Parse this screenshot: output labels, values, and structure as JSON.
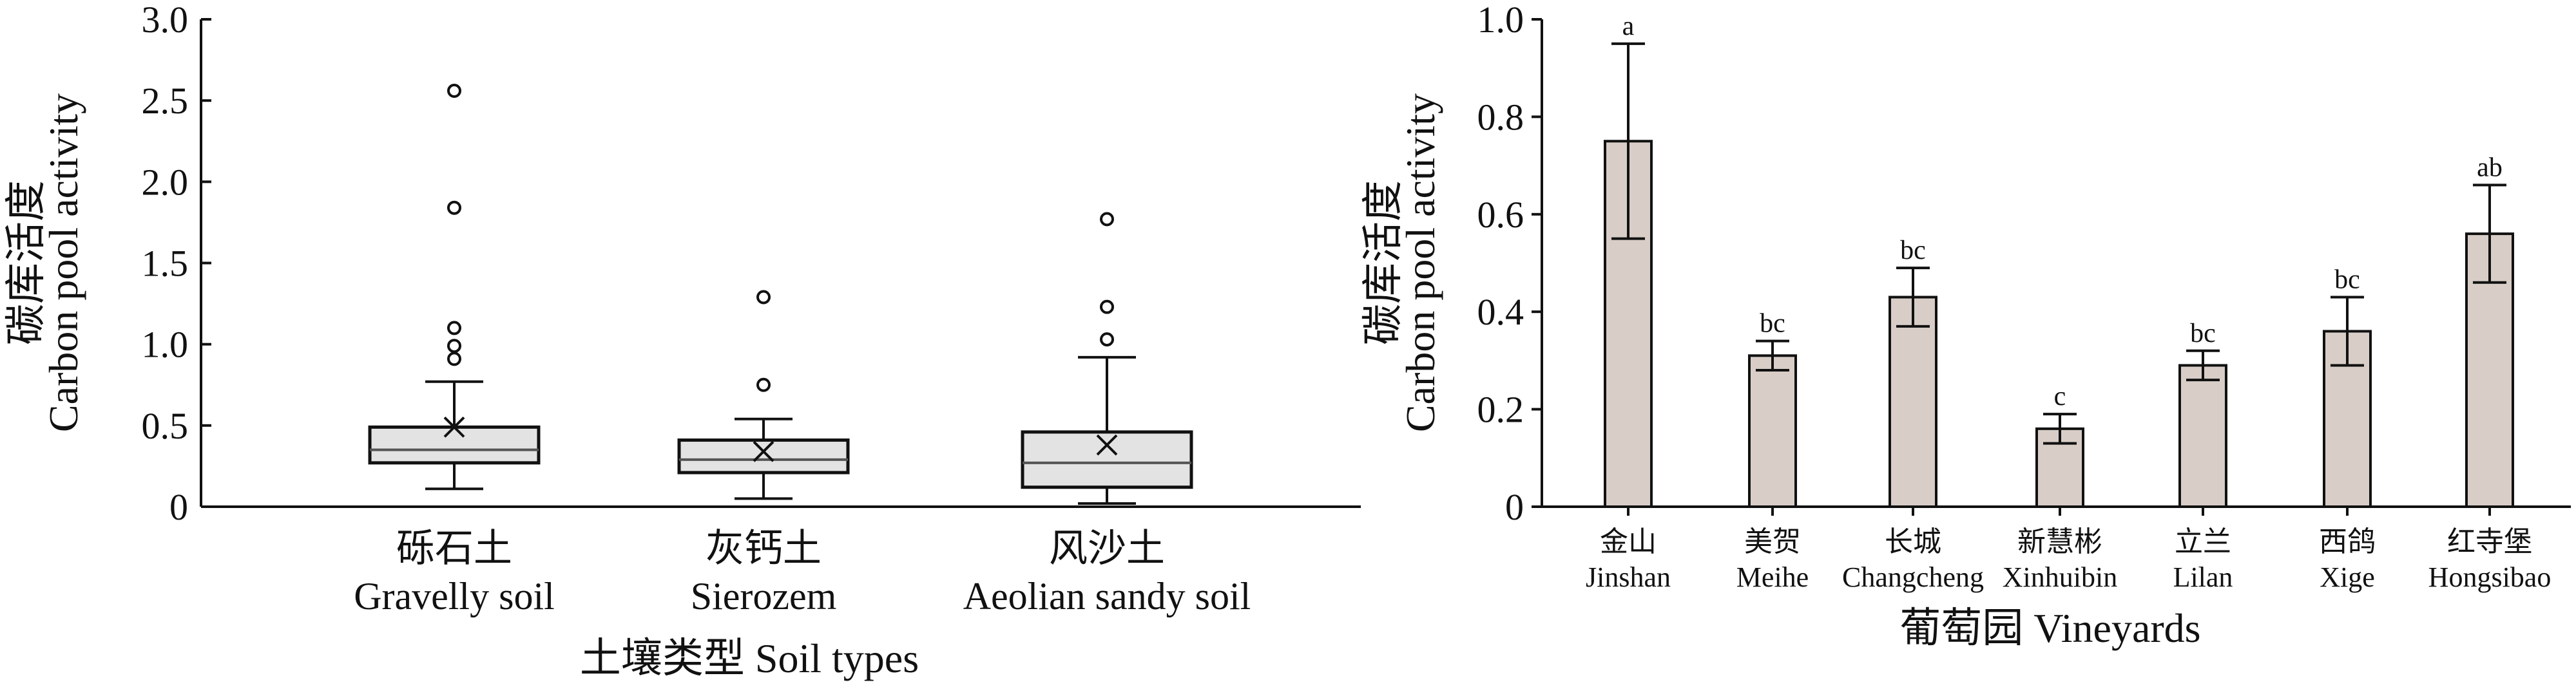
{
  "chart_data": [
    {
      "type": "box",
      "xlabel": "土壤类型 Soil types",
      "ylabel_cn": "碳库活度",
      "ylabel_en": "Carbon pool activity",
      "ylim": [
        0,
        3.0
      ],
      "yticks": [
        "0",
        "0.5",
        "1.0",
        "1.5",
        "2.0",
        "2.5",
        "3.0"
      ],
      "categories": [
        {
          "cn": "砾石土",
          "en": "Gravelly soil"
        },
        {
          "cn": "灰钙土",
          "en": "Sierozem"
        },
        {
          "cn": "风沙土",
          "en": "Aeolian sandy soil"
        }
      ],
      "boxes": [
        {
          "min": 0.11,
          "q1": 0.27,
          "median": 0.35,
          "q3": 0.49,
          "max": 0.77,
          "mean": 0.49,
          "outliers": [
            0.91,
            0.99,
            1.1,
            1.84,
            2.56
          ]
        },
        {
          "min": 0.05,
          "q1": 0.21,
          "median": 0.29,
          "q3": 0.41,
          "max": 0.54,
          "mean": 0.34,
          "outliers": [
            0.75,
            1.29
          ]
        },
        {
          "min": 0.02,
          "q1": 0.12,
          "median": 0.27,
          "q3": 0.46,
          "max": 0.92,
          "mean": 0.38,
          "outliers": [
            1.03,
            1.23,
            1.77
          ]
        }
      ],
      "colors": {
        "box_fill": "#e3e3e3",
        "line": "#111111"
      }
    },
    {
      "type": "bar",
      "xlabel": "葡萄园 Vineyards",
      "ylabel_cn": "碳库活度",
      "ylabel_en": "Carbon pool activity",
      "ylim": [
        0,
        1.0
      ],
      "yticks": [
        "0",
        "0.2",
        "0.4",
        "0.6",
        "0.8",
        "1.0"
      ],
      "categories": [
        {
          "cn": "金山",
          "en": "Jinshan"
        },
        {
          "cn": "美贺",
          "en": "Meihe"
        },
        {
          "cn": "长城",
          "en": "Changcheng"
        },
        {
          "cn": "新慧彬",
          "en": "Xinhuibin"
        },
        {
          "cn": "立兰",
          "en": "Lilan"
        },
        {
          "cn": "西鸽",
          "en": "Xige"
        },
        {
          "cn": "红寺堡",
          "en": "Hongsibao"
        }
      ],
      "values": [
        0.75,
        0.31,
        0.43,
        0.16,
        0.29,
        0.36,
        0.56
      ],
      "errors": [
        0.2,
        0.03,
        0.06,
        0.03,
        0.03,
        0.07,
        0.1
      ],
      "significance": [
        "a",
        "bc",
        "bc",
        "c",
        "bc",
        "bc",
        "ab"
      ],
      "colors": {
        "bar_fill": "#d8cdc7",
        "line": "#111111"
      }
    }
  ]
}
